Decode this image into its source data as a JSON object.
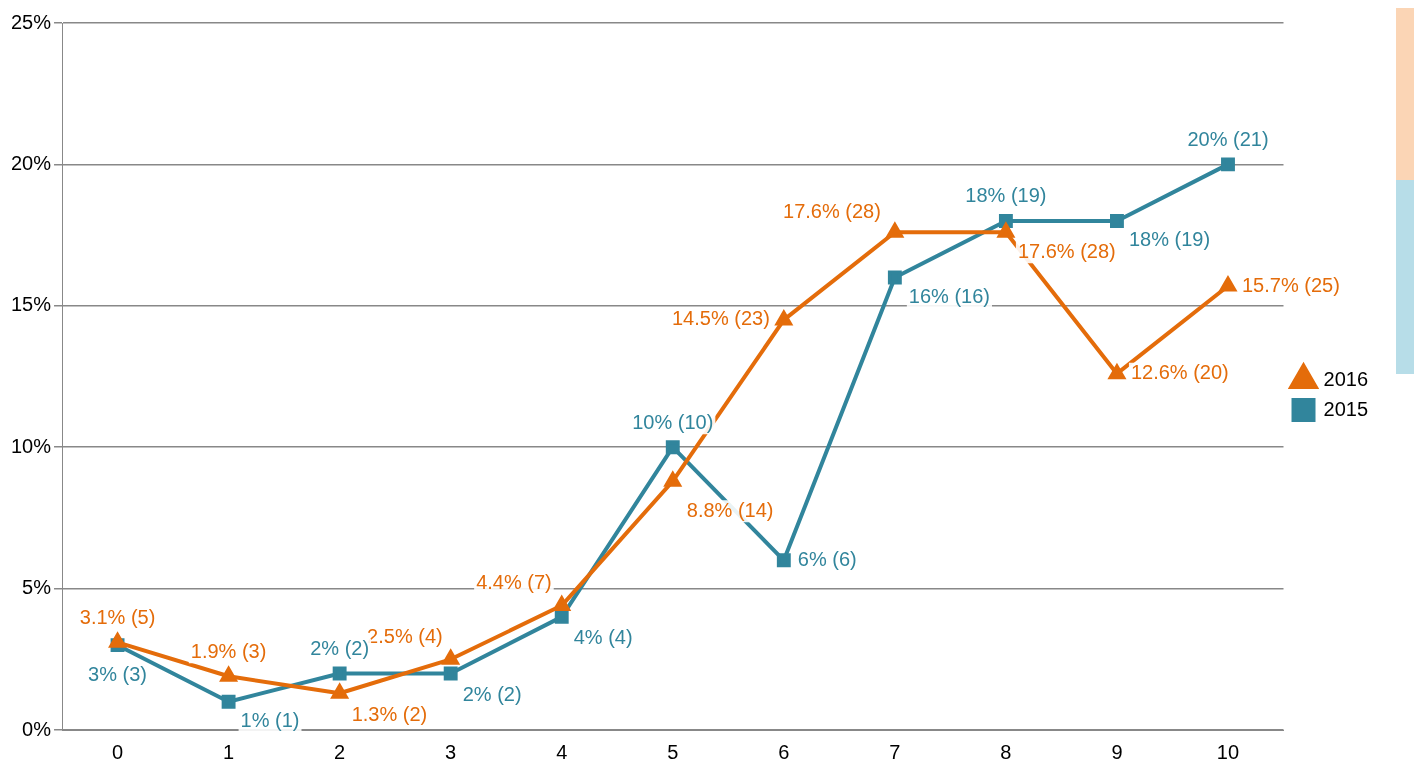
{
  "chart_data": {
    "type": "line",
    "categories": [
      "0",
      "1",
      "2",
      "3",
      "4",
      "5",
      "6",
      "7",
      "8",
      "9",
      "10"
    ],
    "series": [
      {
        "name": "2016",
        "color": "#e46c0a",
        "marker": "triangle",
        "values": [
          3.1,
          1.9,
          1.3,
          2.5,
          4.4,
          8.8,
          14.5,
          17.6,
          17.6,
          12.6,
          15.7
        ],
        "value_labels": [
          "3.1% (5)",
          "1.9% (3)",
          "1.3% (2)",
          "2.5% (4)",
          "4.4% (7)",
          "8.8% (14)",
          "14.5% (23)",
          "17.6% (28)",
          "17.6% (28)",
          "12.6% (20)",
          "15.7% (25)"
        ]
      },
      {
        "name": "2015",
        "color": "#31859c",
        "marker": "square",
        "values": [
          3,
          1,
          2,
          2,
          4,
          10,
          6,
          16,
          18,
          18,
          20
        ],
        "value_labels": [
          "3% (3)",
          "1% (1)",
          "2% (2)",
          "2% (2)",
          "4% (4)",
          "10% (10)",
          "6% (6)",
          "16% (16)",
          "18% (19)",
          "18% (19)",
          "20% (21)"
        ]
      }
    ],
    "ylim": [
      0,
      25
    ],
    "yticks": [
      {
        "value": 0,
        "label": "0%"
      },
      {
        "value": 5,
        "label": "5%"
      },
      {
        "value": 10,
        "label": "10%"
      },
      {
        "value": 15,
        "label": "15%"
      },
      {
        "value": 20,
        "label": "20%"
      },
      {
        "value": 25,
        "label": "25%"
      }
    ],
    "grid": "y",
    "legend": "right",
    "line_style": "solid"
  }
}
